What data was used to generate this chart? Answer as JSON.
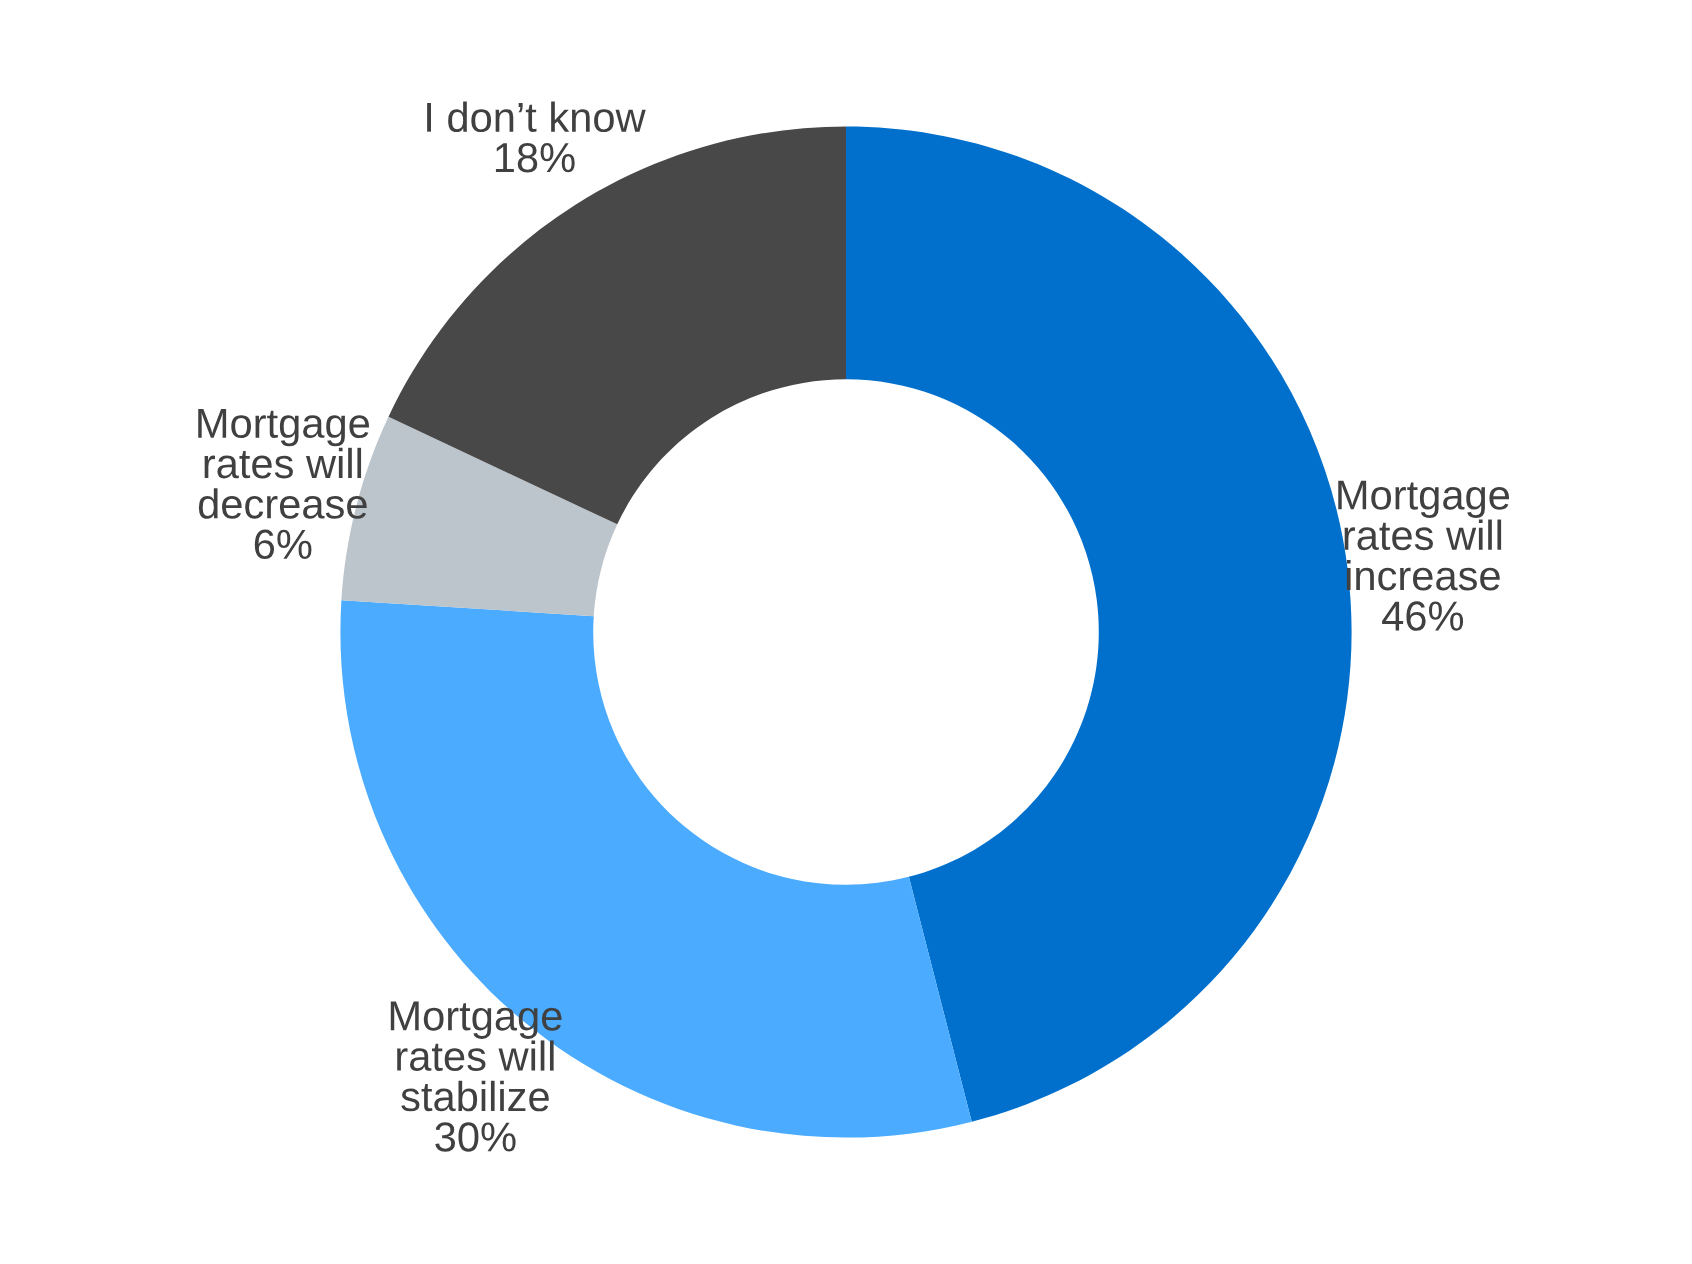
{
  "chart_data": {
    "type": "donut",
    "categories": [
      "Mortgage\nrates will\nincrease",
      "Mortgage\nrates will\nstabilize",
      "Mortgage\nrates will\ndecrease",
      "I don’t know"
    ],
    "values": [
      46,
      30,
      6,
      18
    ],
    "value_labels": [
      "46%",
      "30%",
      "6%",
      "18%"
    ],
    "colors": [
      "#0070cc",
      "#4aabff",
      "#bcc4cc",
      "#484848"
    ],
    "legend": false
  }
}
